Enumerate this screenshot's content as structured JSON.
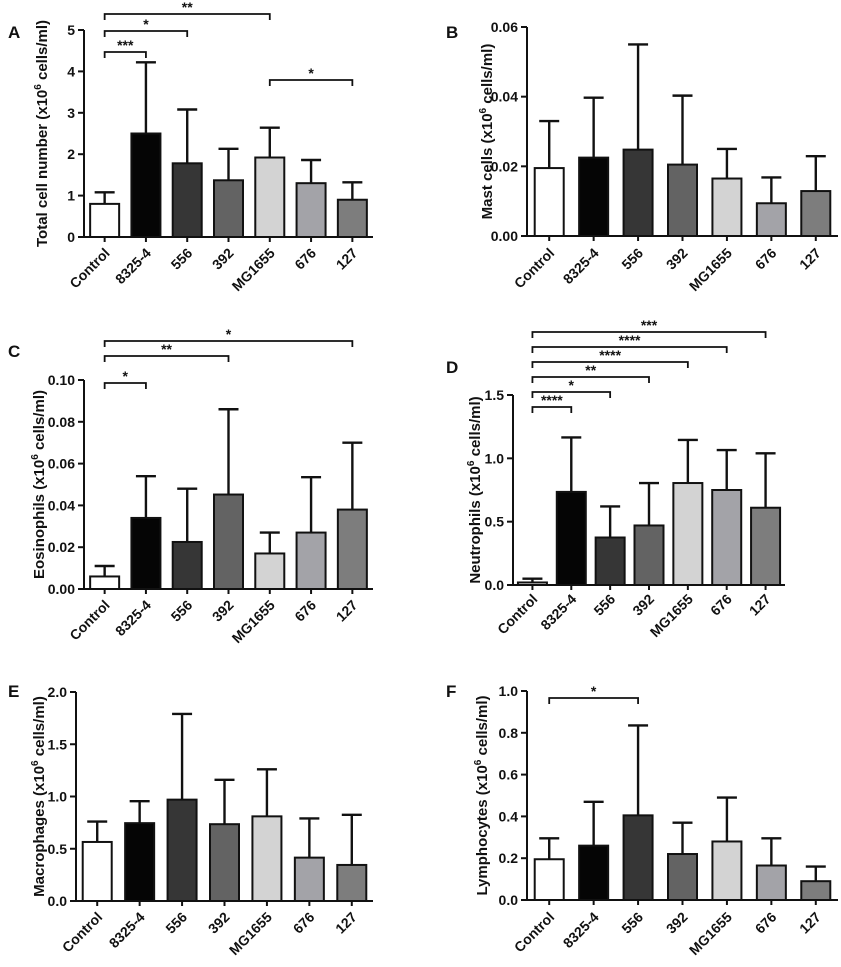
{
  "figure_description_title": "",
  "colors": {
    "Control": "#ffffff",
    "8325-4": "#050505",
    "556": "#363636",
    "392": "#636363",
    "MG1655": "#d3d3d3",
    "676": "#a3a3a8",
    "127": "#7d7d7d"
  },
  "chart_data": [
    {
      "panel": "A",
      "type": "bar",
      "categories": [
        "Control",
        "8325-4",
        "556",
        "392",
        "MG1655",
        "676",
        "127"
      ],
      "values": [
        0.8,
        2.5,
        1.78,
        1.37,
        1.92,
        1.3,
        0.9
      ],
      "errors": [
        0.28,
        1.72,
        1.3,
        0.76,
        0.72,
        0.56,
        0.42
      ],
      "ylabel_pre": "Total cell number  (x10",
      "ylabel_sup": "6",
      "ylabel_post": " cells/ml)",
      "ylim": [
        0,
        5
      ],
      "ticks": [
        0,
        1,
        2,
        3,
        4,
        5
      ],
      "tick_labels": [
        "0",
        "1",
        "2",
        "3",
        "4",
        "5"
      ],
      "significance": [
        {
          "from": 0,
          "to": 4,
          "label": "**"
        },
        {
          "from": 0,
          "to": 2,
          "label": "*"
        },
        {
          "from": 0,
          "to": 1,
          "label": "***"
        },
        {
          "from": 4,
          "to": 6,
          "label": "*"
        }
      ]
    },
    {
      "panel": "B",
      "type": "bar",
      "categories": [
        "Control",
        "8325-4",
        "556",
        "392",
        "MG1655",
        "676",
        "127"
      ],
      "values": [
        0.0195,
        0.0225,
        0.0248,
        0.0205,
        0.0165,
        0.0094,
        0.0129
      ],
      "errors": [
        0.0135,
        0.0172,
        0.0302,
        0.0198,
        0.0085,
        0.0074,
        0.01
      ],
      "ylabel_pre": "Mast cells (x10",
      "ylabel_sup": "6",
      "ylabel_post": " cells/ml)",
      "ylim": [
        0,
        0.06
      ],
      "ticks": [
        0,
        0.02,
        0.04,
        0.06
      ],
      "tick_labels": [
        "0.00",
        "0.02",
        "0.04",
        "0.06"
      ],
      "significance": []
    },
    {
      "panel": "C",
      "type": "bar",
      "categories": [
        "Control",
        "8325-4",
        "556",
        "392",
        "MG1655",
        "676",
        "127"
      ],
      "values": [
        0.006,
        0.034,
        0.0225,
        0.0452,
        0.017,
        0.027,
        0.038
      ],
      "errors": [
        0.005,
        0.02,
        0.0255,
        0.0408,
        0.01,
        0.0265,
        0.032
      ],
      "ylabel_pre": "Eosinophils (x10",
      "ylabel_sup": "6",
      "ylabel_post": " cells/ml)",
      "ylim": [
        0,
        0.1
      ],
      "ticks": [
        0,
        0.02,
        0.04,
        0.06,
        0.08,
        0.1
      ],
      "tick_labels": [
        "0.00",
        "0.02",
        "0.04",
        "0.06",
        "0.08",
        "0.10"
      ],
      "significance": [
        {
          "from": 0,
          "to": 6,
          "label": "*"
        },
        {
          "from": 0,
          "to": 3,
          "label": "**"
        },
        {
          "from": 0,
          "to": 1,
          "label": "*"
        }
      ]
    },
    {
      "panel": "D",
      "type": "bar",
      "categories": [
        "Control",
        "8325-4",
        "556",
        "392",
        "MG1655",
        "676",
        "127"
      ],
      "values": [
        0.02,
        0.735,
        0.375,
        0.47,
        0.805,
        0.75,
        0.61
      ],
      "errors": [
        0.03,
        0.43,
        0.245,
        0.335,
        0.34,
        0.315,
        0.43
      ],
      "ylabel_pre": "Neutrophils (x10",
      "ylabel_sup": "6",
      "ylabel_post": " cells/ml)",
      "ylim": [
        0,
        1.5
      ],
      "ticks": [
        0,
        0.5,
        1.0,
        1.5
      ],
      "tick_labels": [
        "0.0",
        "0.5",
        "1.0",
        "1.5"
      ],
      "significance": [
        {
          "from": 0,
          "to": 6,
          "label": "***"
        },
        {
          "from": 0,
          "to": 5,
          "label": "****"
        },
        {
          "from": 0,
          "to": 4,
          "label": "****"
        },
        {
          "from": 0,
          "to": 3,
          "label": "**"
        },
        {
          "from": 0,
          "to": 2,
          "label": "*"
        },
        {
          "from": 0,
          "to": 1,
          "label": "****"
        }
      ]
    },
    {
      "panel": "E",
      "type": "bar",
      "categories": [
        "Control",
        "8325-4",
        "556",
        "392",
        "MG1655",
        "676",
        "127"
      ],
      "values": [
        0.565,
        0.745,
        0.97,
        0.735,
        0.81,
        0.415,
        0.345
      ],
      "errors": [
        0.195,
        0.21,
        0.82,
        0.425,
        0.45,
        0.375,
        0.48
      ],
      "ylabel_pre": "Macrophages (x10",
      "ylabel_sup": "6",
      "ylabel_post": " cells/ml)",
      "ylim": [
        0,
        2.0
      ],
      "ticks": [
        0,
        0.5,
        1.0,
        1.5,
        2.0
      ],
      "tick_labels": [
        "0.0",
        "0.5",
        "1.0",
        "1.5",
        "2.0"
      ],
      "significance": []
    },
    {
      "panel": "F",
      "type": "bar",
      "categories": [
        "Control",
        "8325-4",
        "556",
        "392",
        "MG1655",
        "676",
        "127"
      ],
      "values": [
        0.195,
        0.26,
        0.405,
        0.22,
        0.28,
        0.165,
        0.09
      ],
      "errors": [
        0.1,
        0.21,
        0.43,
        0.15,
        0.21,
        0.13,
        0.07
      ],
      "ylabel_pre": "Lymphocytes (x10",
      "ylabel_sup": "6",
      "ylabel_post": " cells/ml)",
      "ylim": [
        0,
        1.0
      ],
      "ticks": [
        0,
        0.2,
        0.4,
        0.6,
        0.8,
        1.0
      ],
      "tick_labels": [
        "0.0",
        "0.2",
        "0.4",
        "0.6",
        "0.8",
        "1.0"
      ],
      "significance": [
        {
          "from": 0,
          "to": 2,
          "label": "*"
        }
      ]
    }
  ]
}
